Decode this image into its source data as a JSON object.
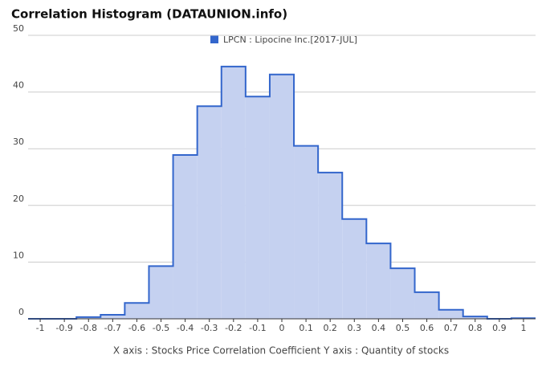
{
  "chart_data": {
    "type": "histogram",
    "title": "Correlation Histogram (DATAUNION.info)",
    "legend": "LPCN : Lipocine Inc.[2017-JUL]",
    "axis_note": "X axis : Stocks Price Correlation Coefficient  Y axis : Quantity of stocks",
    "color": "#3366cc",
    "fill": "#c5d1f0",
    "bins": [
      -1.05,
      -0.95,
      -0.85,
      -0.75,
      -0.65,
      -0.55,
      -0.45,
      -0.35,
      -0.25,
      -0.15,
      -0.05,
      0.05,
      0.15,
      0.25,
      0.35,
      0.45,
      0.55,
      0.65,
      0.75,
      0.85,
      0.95,
      1.05
    ],
    "counts": [
      0,
      0,
      0.3,
      0.7,
      2.8,
      9.3,
      28.9,
      37.5,
      44.5,
      39.2,
      43.1,
      30.5,
      25.8,
      17.6,
      13.3,
      8.9,
      4.7,
      1.6,
      0.4,
      0,
      0.1
    ],
    "xlim": [
      -1.05,
      1.05
    ],
    "xticks": [
      -1,
      -0.9,
      -0.8,
      -0.7,
      -0.6,
      -0.5,
      -0.4,
      -0.3,
      -0.2,
      -0.1,
      0,
      0.1,
      0.2,
      0.3,
      0.4,
      0.5,
      0.6,
      0.7,
      0.8,
      0.9,
      1
    ],
    "ylim": [
      0,
      50
    ],
    "yticks": [
      0,
      10,
      20,
      30,
      40,
      50
    ],
    "grid": true
  }
}
